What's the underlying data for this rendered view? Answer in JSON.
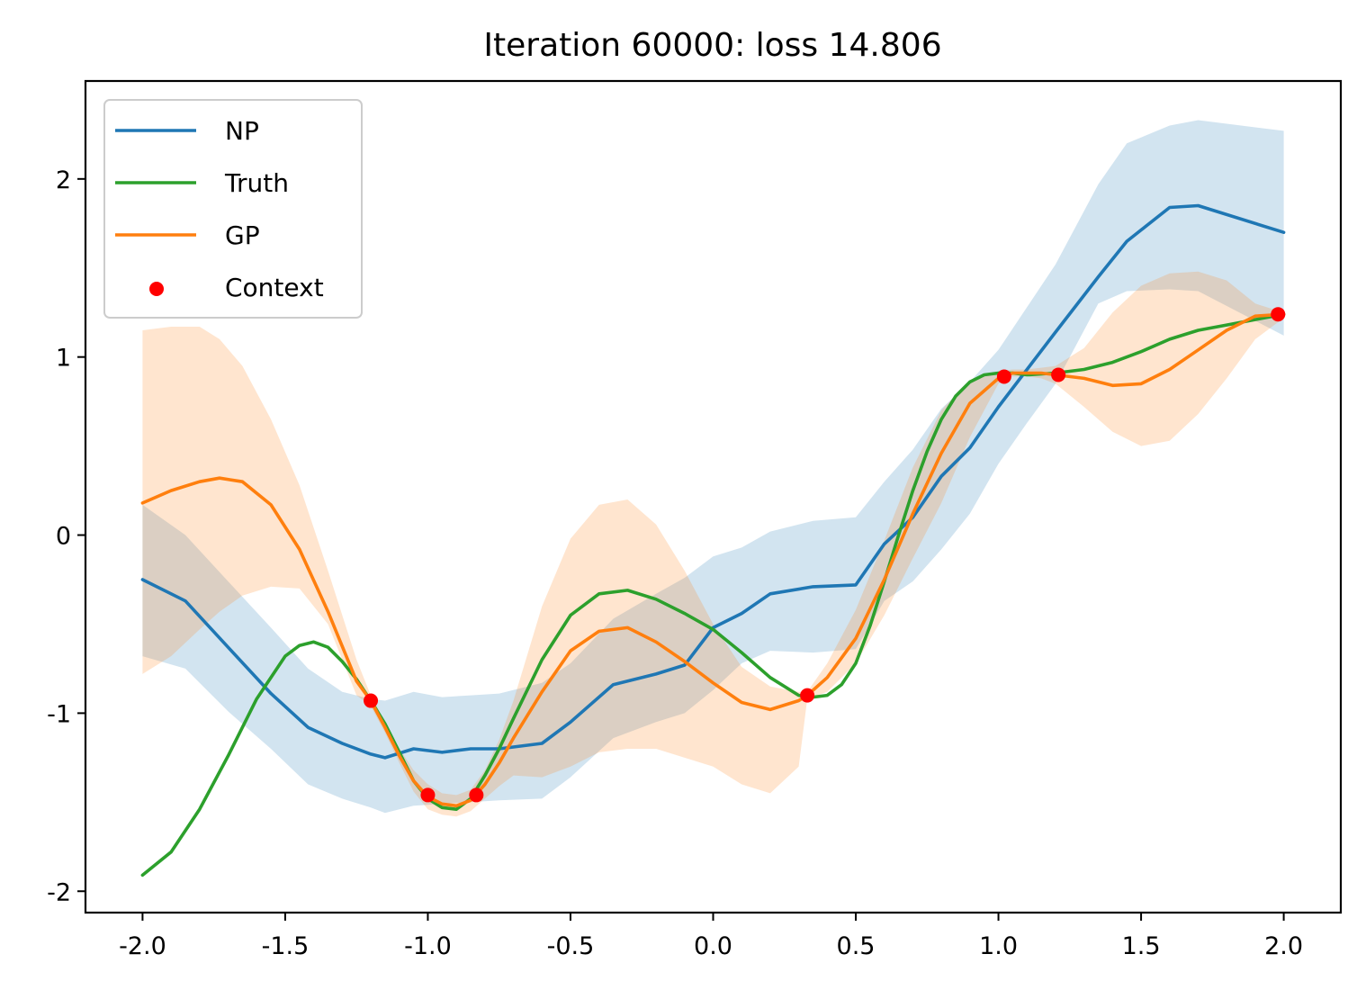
{
  "chart_data": {
    "type": "line",
    "title": "Iteration 60000: loss 14.806",
    "xlabel": "",
    "ylabel": "",
    "xlim": [
      -2.2,
      2.2
    ],
    "ylim": [
      -2.12,
      2.55
    ],
    "grid": false,
    "legend_position": "top-left",
    "x_ticks": [
      -2.0,
      -1.5,
      -1.0,
      -0.5,
      0.0,
      0.5,
      1.0,
      1.5,
      2.0
    ],
    "x_tick_labels": [
      "-2.0",
      "-1.5",
      "-1.0",
      "-0.5",
      "0.0",
      "0.5",
      "1.0",
      "1.5",
      "2.0"
    ],
    "y_ticks": [
      2,
      1,
      0,
      -1,
      -2
    ],
    "y_tick_labels": [
      "2",
      "1",
      "0",
      "-1",
      "-2"
    ],
    "colors": {
      "NP": "#1f77b4",
      "NP_band": "#1f77b4",
      "Truth": "#2ca02c",
      "GP": "#ff7f0e",
      "GP_band": "#ff7f0e",
      "Context": "#ff0000"
    },
    "series": [
      {
        "name": "NP",
        "kind": "line",
        "x": [
          -2.0,
          -1.85,
          -1.7,
          -1.55,
          -1.42,
          -1.3,
          -1.2,
          -1.15,
          -1.05,
          -0.95,
          -0.85,
          -0.75,
          -0.6,
          -0.5,
          -0.35,
          -0.2,
          -0.1,
          0.0,
          0.1,
          0.2,
          0.35,
          0.5,
          0.6,
          0.7,
          0.8,
          0.9,
          1.0,
          1.1,
          1.2,
          1.35,
          1.45,
          1.6,
          1.7,
          2.0
        ],
        "y": [
          -0.25,
          -0.37,
          -0.63,
          -0.89,
          -1.08,
          -1.17,
          -1.23,
          -1.25,
          -1.2,
          -1.22,
          -1.2,
          -1.2,
          -1.17,
          -1.05,
          -0.84,
          -0.78,
          -0.73,
          -0.52,
          -0.44,
          -0.33,
          -0.29,
          -0.28,
          -0.05,
          0.1,
          0.33,
          0.49,
          0.72,
          0.93,
          1.14,
          1.45,
          1.65,
          1.84,
          1.85,
          1.7
        ]
      },
      {
        "name": "NP_band",
        "kind": "band",
        "x": [
          -2.0,
          -1.85,
          -1.7,
          -1.55,
          -1.42,
          -1.3,
          -1.2,
          -1.15,
          -1.05,
          -0.95,
          -0.85,
          -0.75,
          -0.6,
          -0.5,
          -0.35,
          -0.2,
          -0.1,
          0.0,
          0.1,
          0.2,
          0.35,
          0.5,
          0.6,
          0.7,
          0.8,
          0.9,
          1.0,
          1.1,
          1.2,
          1.35,
          1.45,
          1.6,
          1.7,
          2.0
        ],
        "upper": [
          0.17,
          0.0,
          -0.26,
          -0.52,
          -0.75,
          -0.88,
          -0.92,
          -0.93,
          -0.88,
          -0.91,
          -0.9,
          -0.89,
          -0.83,
          -0.72,
          -0.47,
          -0.33,
          -0.24,
          -0.12,
          -0.07,
          0.02,
          0.08,
          0.1,
          0.3,
          0.48,
          0.71,
          0.86,
          1.04,
          1.28,
          1.52,
          1.97,
          2.2,
          2.3,
          2.33,
          2.27
        ],
        "lower": [
          -0.68,
          -0.75,
          -0.99,
          -1.2,
          -1.4,
          -1.48,
          -1.53,
          -1.56,
          -1.52,
          -1.51,
          -1.5,
          -1.49,
          -1.48,
          -1.36,
          -1.14,
          -1.05,
          -1.0,
          -0.87,
          -0.72,
          -0.65,
          -0.66,
          -0.64,
          -0.37,
          -0.26,
          -0.08,
          0.12,
          0.4,
          0.63,
          0.85,
          1.3,
          1.37,
          1.38,
          1.37,
          1.12
        ]
      },
      {
        "name": "Truth",
        "kind": "line",
        "x": [
          -2.0,
          -1.9,
          -1.8,
          -1.7,
          -1.6,
          -1.5,
          -1.45,
          -1.4,
          -1.35,
          -1.3,
          -1.25,
          -1.2,
          -1.15,
          -1.1,
          -1.05,
          -1.0,
          -0.95,
          -0.9,
          -0.85,
          -0.8,
          -0.75,
          -0.7,
          -0.6,
          -0.5,
          -0.4,
          -0.3,
          -0.2,
          -0.1,
          0.0,
          0.1,
          0.2,
          0.3,
          0.35,
          0.4,
          0.45,
          0.5,
          0.55,
          0.6,
          0.65,
          0.7,
          0.75,
          0.8,
          0.85,
          0.9,
          0.95,
          1.0,
          1.05,
          1.1,
          1.2,
          1.3,
          1.4,
          1.5,
          1.6,
          1.7,
          1.8,
          1.9,
          2.0
        ],
        "y": [
          -1.91,
          -1.78,
          -1.54,
          -1.24,
          -0.92,
          -0.68,
          -0.62,
          -0.6,
          -0.63,
          -0.71,
          -0.81,
          -0.93,
          -1.06,
          -1.22,
          -1.38,
          -1.48,
          -1.53,
          -1.54,
          -1.48,
          -1.35,
          -1.2,
          -1.03,
          -0.7,
          -0.45,
          -0.33,
          -0.31,
          -0.36,
          -0.44,
          -0.53,
          -0.66,
          -0.8,
          -0.9,
          -0.91,
          -0.9,
          -0.84,
          -0.72,
          -0.51,
          -0.26,
          0.0,
          0.25,
          0.47,
          0.65,
          0.78,
          0.86,
          0.9,
          0.91,
          0.91,
          0.9,
          0.91,
          0.93,
          0.97,
          1.03,
          1.1,
          1.15,
          1.18,
          1.21,
          1.24
        ]
      },
      {
        "name": "GP",
        "kind": "line",
        "x": [
          -2.0,
          -1.9,
          -1.8,
          -1.73,
          -1.65,
          -1.55,
          -1.45,
          -1.35,
          -1.25,
          -1.2,
          -1.15,
          -1.1,
          -1.05,
          -1.0,
          -0.95,
          -0.9,
          -0.85,
          -0.8,
          -0.75,
          -0.7,
          -0.6,
          -0.5,
          -0.4,
          -0.3,
          -0.2,
          -0.1,
          0.0,
          0.1,
          0.2,
          0.3,
          0.33,
          0.4,
          0.5,
          0.6,
          0.7,
          0.8,
          0.9,
          1.0,
          1.05,
          1.1,
          1.15,
          1.2,
          1.3,
          1.4,
          1.5,
          1.6,
          1.7,
          1.8,
          1.9,
          2.0
        ],
        "y": [
          0.18,
          0.25,
          0.3,
          0.32,
          0.3,
          0.17,
          -0.08,
          -0.43,
          -0.82,
          -0.93,
          -1.08,
          -1.24,
          -1.38,
          -1.47,
          -1.51,
          -1.52,
          -1.49,
          -1.4,
          -1.28,
          -1.14,
          -0.88,
          -0.65,
          -0.54,
          -0.52,
          -0.6,
          -0.71,
          -0.83,
          -0.94,
          -0.98,
          -0.93,
          -0.9,
          -0.8,
          -0.58,
          -0.25,
          0.12,
          0.46,
          0.74,
          0.88,
          0.91,
          0.91,
          0.91,
          0.9,
          0.88,
          0.84,
          0.85,
          0.93,
          1.04,
          1.15,
          1.23,
          1.24
        ]
      },
      {
        "name": "GP_band",
        "kind": "band",
        "x": [
          -2.0,
          -1.9,
          -1.8,
          -1.73,
          -1.65,
          -1.55,
          -1.45,
          -1.35,
          -1.25,
          -1.2,
          -1.15,
          -1.1,
          -1.05,
          -1.0,
          -0.95,
          -0.9,
          -0.85,
          -0.8,
          -0.75,
          -0.7,
          -0.6,
          -0.5,
          -0.4,
          -0.3,
          -0.2,
          -0.1,
          0.0,
          0.1,
          0.2,
          0.3,
          0.33,
          0.4,
          0.5,
          0.6,
          0.7,
          0.8,
          0.9,
          1.0,
          1.05,
          1.1,
          1.15,
          1.2,
          1.3,
          1.4,
          1.5,
          1.6,
          1.7,
          1.8,
          1.9,
          2.0
        ],
        "upper": [
          1.15,
          1.17,
          1.17,
          1.1,
          0.95,
          0.65,
          0.28,
          -0.2,
          -0.7,
          -0.9,
          -1.05,
          -1.2,
          -1.32,
          -1.4,
          -1.45,
          -1.46,
          -1.43,
          -1.32,
          -1.15,
          -0.93,
          -0.4,
          -0.02,
          0.17,
          0.2,
          0.06,
          -0.2,
          -0.5,
          -0.74,
          -0.85,
          -0.88,
          -0.88,
          -0.72,
          -0.42,
          -0.03,
          0.38,
          0.7,
          0.87,
          0.92,
          0.93,
          0.93,
          0.94,
          0.95,
          1.05,
          1.25,
          1.4,
          1.47,
          1.48,
          1.43,
          1.3,
          1.25
        ],
        "lower": [
          -0.78,
          -0.68,
          -0.53,
          -0.43,
          -0.34,
          -0.29,
          -0.3,
          -0.5,
          -0.9,
          -0.96,
          -1.11,
          -1.28,
          -1.44,
          -1.54,
          -1.57,
          -1.58,
          -1.55,
          -1.48,
          -1.41,
          -1.35,
          -1.36,
          -1.3,
          -1.22,
          -1.2,
          -1.2,
          -1.25,
          -1.3,
          -1.4,
          -1.45,
          -1.3,
          -0.92,
          -0.88,
          -0.72,
          -0.45,
          -0.13,
          0.18,
          0.55,
          0.85,
          0.89,
          0.89,
          0.88,
          0.85,
          0.72,
          0.58,
          0.5,
          0.53,
          0.68,
          0.88,
          1.1,
          1.22
        ]
      },
      {
        "name": "Context",
        "kind": "scatter",
        "x": [
          -1.2,
          -1.0,
          -0.83,
          0.33,
          1.02,
          1.21,
          1.98
        ],
        "y": [
          -0.93,
          -1.46,
          -1.46,
          -0.9,
          0.89,
          0.9,
          1.24
        ]
      }
    ],
    "legend": [
      "NP",
      "Truth",
      "GP",
      "Context"
    ]
  }
}
